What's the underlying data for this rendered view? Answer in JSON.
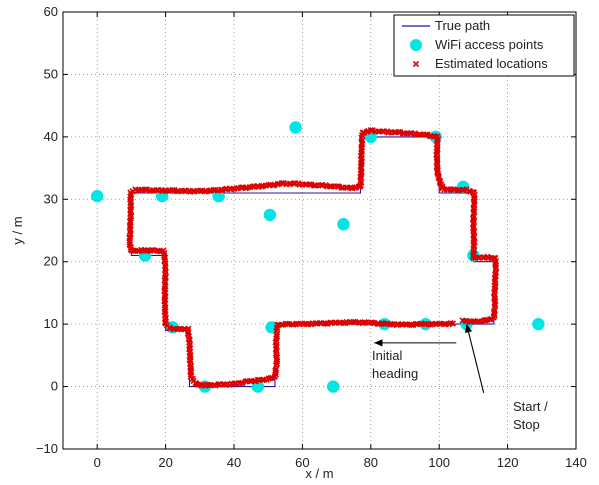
{
  "chart_data": {
    "type": "scatter",
    "xlabel": "x / m",
    "ylabel": "y / m",
    "xlim": [
      -10,
      140
    ],
    "ylim": [
      -10,
      60
    ],
    "xticks": [
      0,
      20,
      40,
      60,
      80,
      100,
      120,
      140
    ],
    "yticks": [
      -10,
      0,
      10,
      20,
      30,
      40,
      50,
      60
    ],
    "grid": true,
    "legend_position": "top-right",
    "colors": {
      "true_path": "#1a1aa6",
      "wifi": "#00e5e5",
      "estimated": "#dd0000",
      "annotation": "#000000"
    },
    "series": [
      {
        "name": "True path",
        "kind": "line",
        "points": [
          [
            107,
            10
          ],
          [
            52,
            10
          ],
          [
            52,
            0
          ],
          [
            27,
            0
          ],
          [
            27,
            9
          ],
          [
            20,
            9
          ],
          [
            20,
            21
          ],
          [
            10,
            21
          ],
          [
            10,
            31
          ],
          [
            77,
            31
          ],
          [
            77,
            40
          ],
          [
            100,
            40
          ],
          [
            100,
            31
          ],
          [
            110,
            31
          ],
          [
            110,
            20
          ],
          [
            116,
            20
          ],
          [
            116,
            10
          ],
          [
            107,
            10
          ]
        ]
      },
      {
        "name": "WiFi access points",
        "kind": "scatter",
        "points": [
          [
            0,
            30.5
          ],
          [
            19,
            30.5
          ],
          [
            35.5,
            30.5
          ],
          [
            58,
            41.5
          ],
          [
            80,
            40
          ],
          [
            99,
            40
          ],
          [
            107,
            32
          ],
          [
            14,
            21
          ],
          [
            22,
            9.5
          ],
          [
            51,
            9.5
          ],
          [
            84,
            10
          ],
          [
            96,
            10
          ],
          [
            108,
            10
          ],
          [
            129,
            10
          ],
          [
            31.5,
            0
          ],
          [
            47,
            0
          ],
          [
            69,
            0
          ],
          [
            50.5,
            27.5
          ],
          [
            72,
            26
          ],
          [
            110,
            21
          ]
        ]
      },
      {
        "name": "Estimated locations",
        "kind": "scatter",
        "points": [
          [
            107,
            10.5
          ],
          [
            110,
            10.4
          ],
          [
            113,
            10.5
          ],
          [
            116,
            11
          ],
          [
            116.3,
            13
          ],
          [
            116.2,
            15
          ],
          [
            116.4,
            17
          ],
          [
            116.5,
            19
          ],
          [
            116.5,
            20.5
          ],
          [
            114,
            20.7
          ],
          [
            112,
            20.6
          ],
          [
            110,
            20.6
          ],
          [
            110.2,
            23
          ],
          [
            110,
            26
          ],
          [
            110.2,
            29
          ],
          [
            110.3,
            31
          ],
          [
            108,
            31.5
          ],
          [
            104,
            31.5
          ],
          [
            101,
            31.7
          ],
          [
            99.5,
            34
          ],
          [
            99.3,
            37
          ],
          [
            99.5,
            40
          ],
          [
            96,
            40.3
          ],
          [
            92,
            40.5
          ],
          [
            88,
            40.7
          ],
          [
            84,
            40.8
          ],
          [
            80,
            41
          ],
          [
            77.5,
            40.6
          ],
          [
            77.3,
            38
          ],
          [
            77.2,
            35
          ],
          [
            77,
            32
          ],
          [
            74,
            31.8
          ],
          [
            70,
            32
          ],
          [
            66,
            32.2
          ],
          [
            62,
            32.3
          ],
          [
            58,
            32.5
          ],
          [
            54,
            32.5
          ],
          [
            50,
            32.2
          ],
          [
            46,
            32
          ],
          [
            42,
            31.8
          ],
          [
            38,
            31.6
          ],
          [
            34,
            31.4
          ],
          [
            30,
            31.3
          ],
          [
            26,
            31.3
          ],
          [
            22,
            31.4
          ],
          [
            18,
            31.4
          ],
          [
            14,
            31.5
          ],
          [
            11,
            31.5
          ],
          [
            9.8,
            31
          ],
          [
            9.8,
            28
          ],
          [
            9.7,
            25.5
          ],
          [
            9.5,
            23
          ],
          [
            10,
            21.7
          ],
          [
            13,
            21.8
          ],
          [
            16,
            21.8
          ],
          [
            19.5,
            21.7
          ],
          [
            20,
            19
          ],
          [
            19.8,
            16
          ],
          [
            19.8,
            13
          ],
          [
            20,
            10
          ],
          [
            21.5,
            9.2
          ],
          [
            24,
            9.2
          ],
          [
            26.5,
            9.2
          ],
          [
            27,
            7
          ],
          [
            27.2,
            4
          ],
          [
            27.5,
            1.5
          ],
          [
            29,
            0.3
          ],
          [
            32,
            0.2
          ],
          [
            36,
            0.3
          ],
          [
            40,
            0.4
          ],
          [
            44,
            0.8
          ],
          [
            47,
            1
          ],
          [
            50,
            1.2
          ],
          [
            52,
            1.5
          ],
          [
            52.5,
            4
          ],
          [
            52.3,
            7
          ],
          [
            52.7,
            9.8
          ],
          [
            55,
            10
          ],
          [
            60,
            10
          ],
          [
            65,
            10.1
          ],
          [
            70,
            10.2
          ],
          [
            75,
            10.3
          ],
          [
            80,
            10.2
          ],
          [
            85,
            10
          ],
          [
            90,
            9.9
          ],
          [
            95,
            10
          ],
          [
            100,
            10
          ],
          [
            104,
            10.1
          ]
        ]
      }
    ],
    "annotations": [
      {
        "text_lines": [
          "Initial",
          "heading"
        ],
        "arrow_from": [
          105,
          7
        ],
        "arrow_to": [
          81,
          7
        ]
      },
      {
        "text_lines": [
          "Start /",
          "Stop"
        ],
        "arrow_from": [
          113,
          -1
        ],
        "arrow_to": [
          108,
          10
        ]
      }
    ]
  }
}
